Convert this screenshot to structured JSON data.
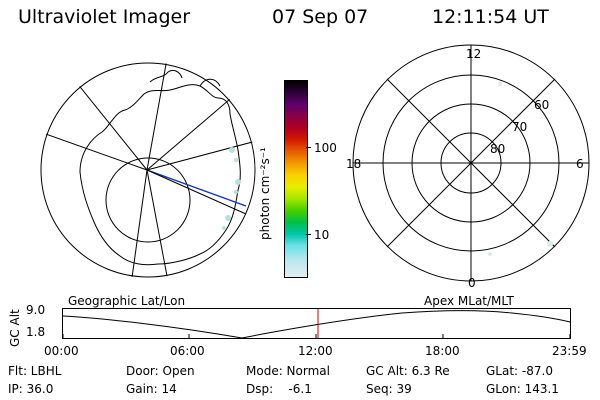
{
  "header": {
    "title": "Ultraviolet Imager",
    "date": "07 Sep 07",
    "time": "12:11:54 UT"
  },
  "left_panel": {
    "caption": "Geographic Lat/Lon"
  },
  "colorbar": {
    "unit_label": "photon cm⁻²s⁻¹",
    "tick_labels": [
      "100",
      "10"
    ]
  },
  "polar_panel": {
    "caption": "Apex MLat/MLT",
    "mlt_labels": {
      "top": "12",
      "left": "18",
      "right": "6",
      "bottom": "0"
    },
    "lat_labels": [
      "60",
      "70",
      "80"
    ]
  },
  "altitude_strip": {
    "axis_label": "GC Alt",
    "y_ticks": [
      "9.0",
      "1.8"
    ],
    "x_ticks": [
      "00:00",
      "06:00",
      "12:00",
      "18:00",
      "23:59"
    ],
    "current_time_marker": "12:11:54"
  },
  "footer": {
    "filter": "Flt: LBHL",
    "door": "Door: Open",
    "mode": "Mode: Normal",
    "gc_alt": "GC Alt: 6.3 Re",
    "glat": "GLat: -87.0",
    "ip": "IP: 36.0",
    "gain": "Gain: 14",
    "dsp": "Dsp:    -6.1",
    "seq": "Seq: 39",
    "glon": "GLon: 143.1"
  },
  "colors": {
    "marker": "#cc0000",
    "track": "#1030c0",
    "aurora": "#b8e0e0"
  }
}
